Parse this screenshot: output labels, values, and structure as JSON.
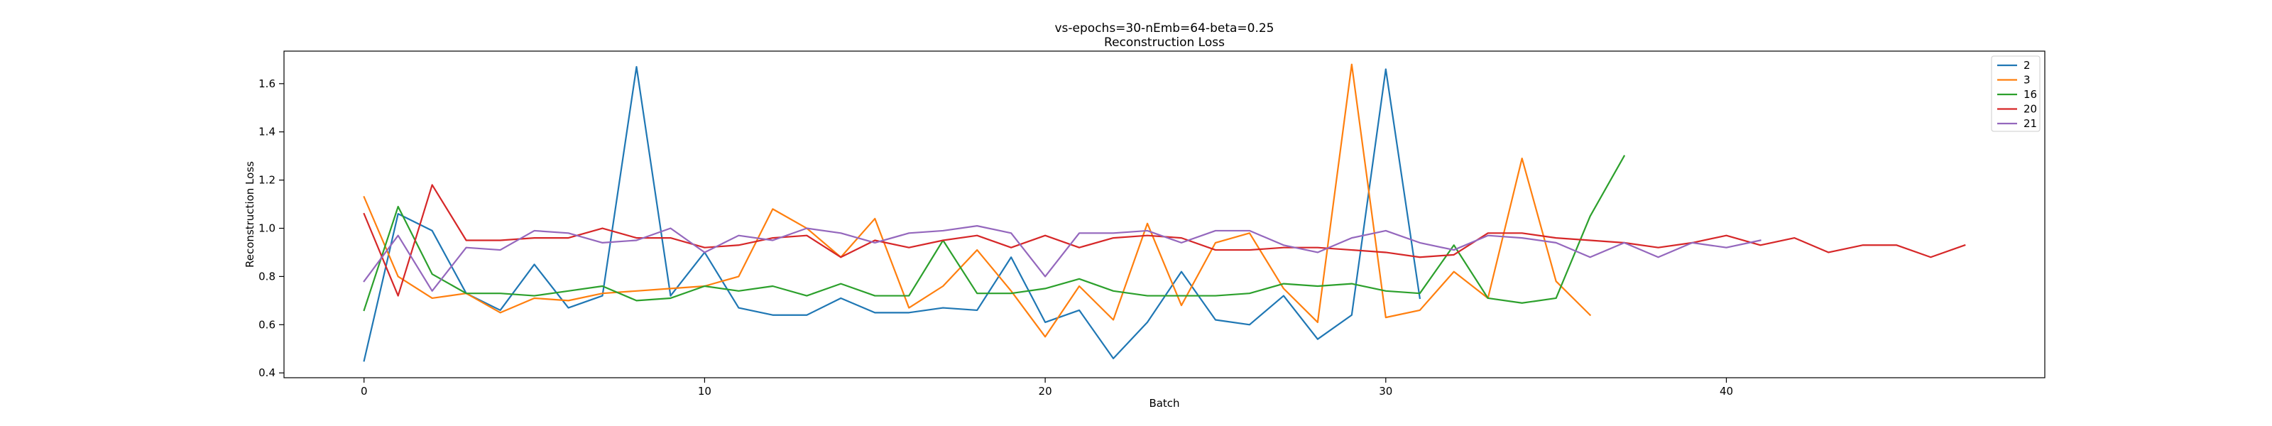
{
  "chart_data": {
    "type": "line",
    "title": "vs-epochs=30-nEmb=64-beta=0.25",
    "subtitle": "Reconstruction Loss",
    "xlabel": "Batch",
    "ylabel": "Reconstruction Loss",
    "xlim": [
      -2.35,
      49.35
    ],
    "ylim": [
      0.38,
      1.735
    ],
    "xticks": [
      0,
      10,
      20,
      30,
      40
    ],
    "yticks": [
      0.4,
      0.6,
      0.8,
      1.0,
      1.2,
      1.4,
      1.6
    ],
    "ytick_labels": [
      "0.4",
      "0.6",
      "0.8",
      "1.0",
      "1.2",
      "1.4",
      "1.6"
    ],
    "grid": false,
    "legend_position": "top-right",
    "series": [
      {
        "name": "2",
        "color": "#1f77b4",
        "values": [
          0.45,
          1.06,
          0.99,
          0.73,
          0.66,
          0.85,
          0.67,
          0.72,
          1.67,
          0.72,
          0.9,
          0.67,
          0.64,
          0.64,
          0.71,
          0.65,
          0.65,
          0.67,
          0.66,
          0.88,
          0.61,
          0.66,
          0.46,
          0.61,
          0.82,
          0.62,
          0.6,
          0.72,
          0.54,
          0.64,
          1.66,
          0.71
        ]
      },
      {
        "name": "3",
        "color": "#ff7f0e",
        "values": [
          1.13,
          0.8,
          0.71,
          0.73,
          0.65,
          0.71,
          0.7,
          0.73,
          0.74,
          0.75,
          0.76,
          0.8,
          1.08,
          1.0,
          0.88,
          1.04,
          0.67,
          0.76,
          0.91,
          0.74,
          0.55,
          0.76,
          0.62,
          1.02,
          0.68,
          0.94,
          0.98,
          0.75,
          0.61,
          1.68,
          0.63,
          0.66,
          0.82,
          0.71,
          1.29,
          0.78,
          0.64
        ]
      },
      {
        "name": "16",
        "color": "#2ca02c",
        "values": [
          0.66,
          1.09,
          0.81,
          0.73,
          0.73,
          0.72,
          0.74,
          0.76,
          0.7,
          0.71,
          0.76,
          0.74,
          0.76,
          0.72,
          0.77,
          0.72,
          0.72,
          0.95,
          0.73,
          0.73,
          0.75,
          0.79,
          0.74,
          0.72,
          0.72,
          0.72,
          0.73,
          0.77,
          0.76,
          0.77,
          0.74,
          0.73,
          0.93,
          0.71,
          0.69,
          0.71,
          1.05,
          1.3
        ]
      },
      {
        "name": "20",
        "color": "#d62728",
        "values": [
          1.06,
          0.72,
          1.18,
          0.95,
          0.95,
          0.96,
          0.96,
          1.0,
          0.96,
          0.96,
          0.92,
          0.93,
          0.96,
          0.97,
          0.88,
          0.95,
          0.92,
          0.95,
          0.97,
          0.92,
          0.97,
          0.92,
          0.96,
          0.97,
          0.96,
          0.91,
          0.91,
          0.92,
          0.92,
          0.91,
          0.9,
          0.88,
          0.89,
          0.98,
          0.98,
          0.96,
          0.95,
          0.94,
          0.92,
          0.94,
          0.97,
          0.93,
          0.96,
          0.9,
          0.93,
          0.93,
          0.88,
          0.93
        ]
      },
      {
        "name": "21",
        "color": "#9467bd",
        "values": [
          0.78,
          0.97,
          0.74,
          0.92,
          0.91,
          0.99,
          0.98,
          0.94,
          0.95,
          1.0,
          0.9,
          0.97,
          0.95,
          1.0,
          0.98,
          0.94,
          0.98,
          0.99,
          1.01,
          0.98,
          0.8,
          0.98,
          0.98,
          0.99,
          0.94,
          0.99,
          0.99,
          0.93,
          0.9,
          0.96,
          0.99,
          0.94,
          0.91,
          0.97,
          0.96,
          0.94,
          0.88,
          0.94,
          0.88,
          0.94,
          0.92,
          0.95
        ]
      }
    ]
  }
}
